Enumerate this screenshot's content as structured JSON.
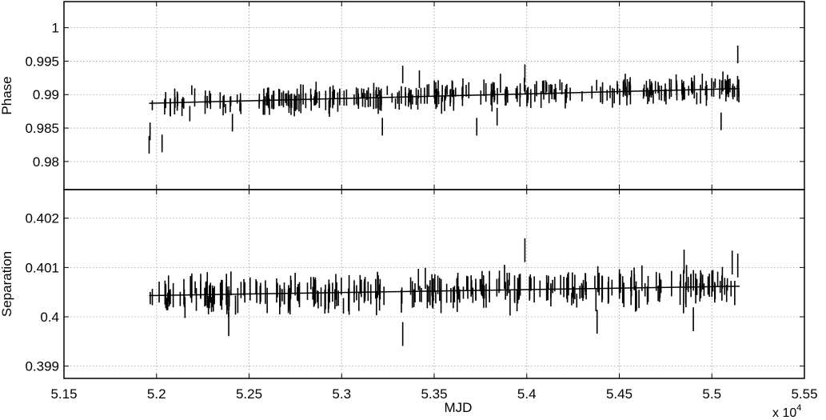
{
  "chart_data": {
    "type": "scatter",
    "shared_x": {
      "label": "MJD",
      "ticks": [
        5.15,
        5.2,
        5.25,
        5.3,
        5.35,
        5.4,
        5.45,
        5.5,
        5.55
      ],
      "tick_labels": [
        "5.15",
        "5.2",
        "5.25",
        "5.3",
        "5.35",
        "5.4",
        "5.45",
        "5.5",
        "5.55"
      ],
      "multiplier_label": "x 10",
      "multiplier_exponent": "4",
      "xlim": [
        5.15,
        5.55
      ]
    },
    "panels": [
      {
        "name": "phase",
        "ylabel": "Phase",
        "ylim": [
          0.9758,
          1.0039
        ],
        "yticks": [
          0.98,
          0.985,
          0.99,
          0.995,
          1
        ],
        "ytick_labels": [
          "0.98",
          "0.985",
          "0.99",
          "0.995",
          "1"
        ],
        "grid": true,
        "errorbar_halfwidth": 0.0012,
        "fit": {
          "x": [
            5.196,
            5.515
          ],
          "y": [
            0.9887,
            0.9909
          ]
        },
        "seed": 11,
        "n_points": 300,
        "noise": 0.0009,
        "outliers": [
          {
            "x": 5.196,
            "y": 0.9825
          },
          {
            "x": 5.1965,
            "y": 0.9845
          },
          {
            "x": 5.203,
            "y": 0.9827
          },
          {
            "x": 5.241,
            "y": 0.9858
          },
          {
            "x": 5.322,
            "y": 0.9852
          },
          {
            "x": 5.333,
            "y": 0.993
          },
          {
            "x": 5.342,
            "y": 0.9923
          },
          {
            "x": 5.373,
            "y": 0.9852
          },
          {
            "x": 5.384,
            "y": 0.9867
          },
          {
            "x": 5.399,
            "y": 0.9932
          },
          {
            "x": 5.505,
            "y": 0.986
          },
          {
            "x": 5.514,
            "y": 0.996
          }
        ]
      },
      {
        "name": "separation",
        "ylabel": "Separation",
        "ylim": [
          0.39875,
          0.40258
        ],
        "yticks": [
          0.399,
          0.4,
          0.401,
          0.402
        ],
        "ytick_labels": [
          "0.399",
          "0.4",
          "0.401",
          "0.402"
        ],
        "grid": true,
        "errorbar_halfwidth": 0.00022,
        "fit": {
          "x": [
            5.196,
            5.515
          ],
          "y": [
            0.40043,
            0.40062
          ]
        },
        "seed": 29,
        "n_points": 300,
        "noise": 0.00016,
        "outliers": [
          {
            "x": 5.239,
            "y": 0.39985
          },
          {
            "x": 5.333,
            "y": 0.39965
          },
          {
            "x": 5.399,
            "y": 0.40135
          },
          {
            "x": 5.438,
            "y": 0.3999
          },
          {
            "x": 5.485,
            "y": 0.40112
          },
          {
            "x": 5.511,
            "y": 0.4011
          },
          {
            "x": 5.49,
            "y": 0.39995
          },
          {
            "x": 5.514,
            "y": 0.40104
          }
        ]
      }
    ]
  }
}
